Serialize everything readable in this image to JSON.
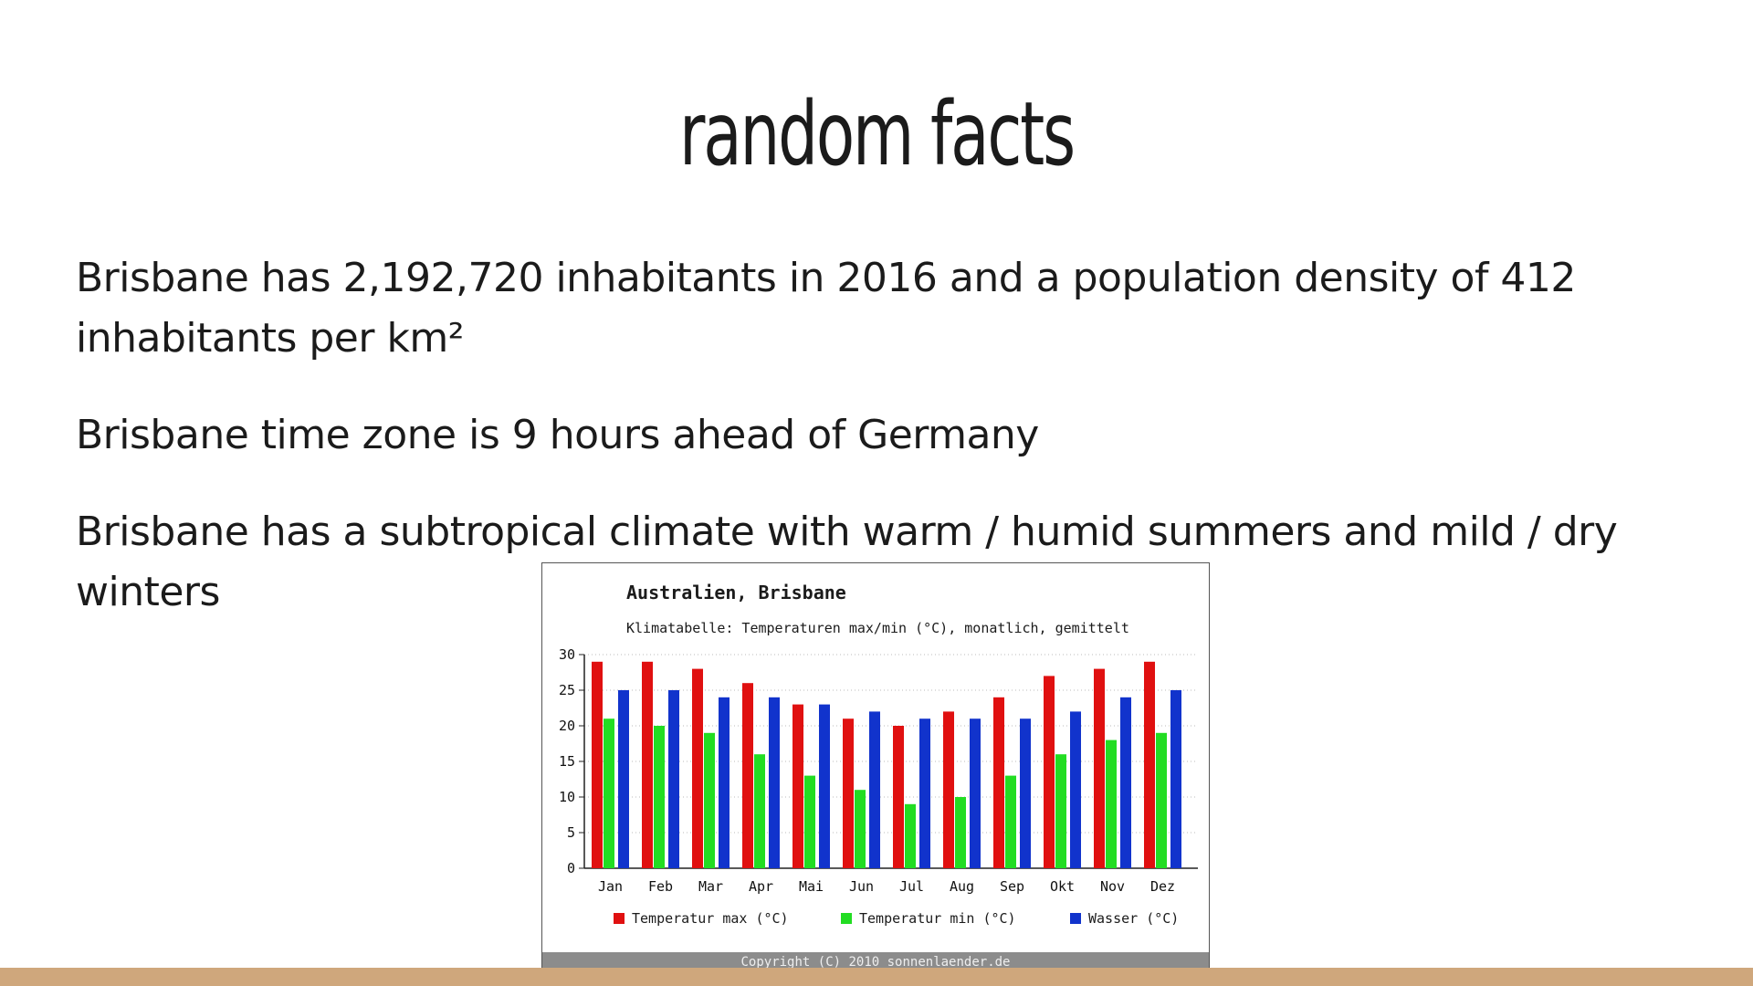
{
  "slide": {
    "title": "random facts",
    "facts": [
      "Brisbane has 2,192,720 inhabitants in 2016 and a population density of 412 inhabitants per km²",
      "Brisbane time zone is 9 hours ahead of Germany",
      "Brisbane has a subtropical climate with warm / humid summers and mild / dry winters"
    ]
  },
  "colors": {
    "background": "#ffffff",
    "bottom_bar": "#cfa77c",
    "temp_max": "#e01010",
    "temp_min": "#22dd22",
    "water": "#1133cc"
  },
  "chart_data": {
    "type": "bar",
    "title": "Australien, Brisbane",
    "subtitle": "Klimatabelle: Temperaturen max/min (°C), monatlich, gemittelt",
    "categories": [
      "Jan",
      "Feb",
      "Mar",
      "Apr",
      "Mai",
      "Jun",
      "Jul",
      "Aug",
      "Sep",
      "Okt",
      "Nov",
      "Dez"
    ],
    "series": [
      {
        "name": "Temperatur max (°C)",
        "color": "#e01010",
        "values": [
          29,
          29,
          28,
          26,
          23,
          21,
          20,
          22,
          24,
          27,
          28,
          29
        ]
      },
      {
        "name": "Temperatur min (°C)",
        "color": "#22dd22",
        "values": [
          21,
          20,
          19,
          16,
          13,
          11,
          9,
          10,
          13,
          16,
          18,
          19
        ]
      },
      {
        "name": "Wasser (°C)",
        "color": "#1133cc",
        "values": [
          25,
          25,
          24,
          24,
          23,
          22,
          21,
          21,
          21,
          22,
          24,
          25
        ]
      }
    ],
    "yticks": [
      "0",
      "5",
      "10",
      "15",
      "20",
      "25",
      "30"
    ],
    "ylim": [
      0,
      30
    ],
    "grid": true,
    "legend_position": "bottom",
    "copyright": "Copyright (C) 2010 sonnenlaender.de"
  }
}
